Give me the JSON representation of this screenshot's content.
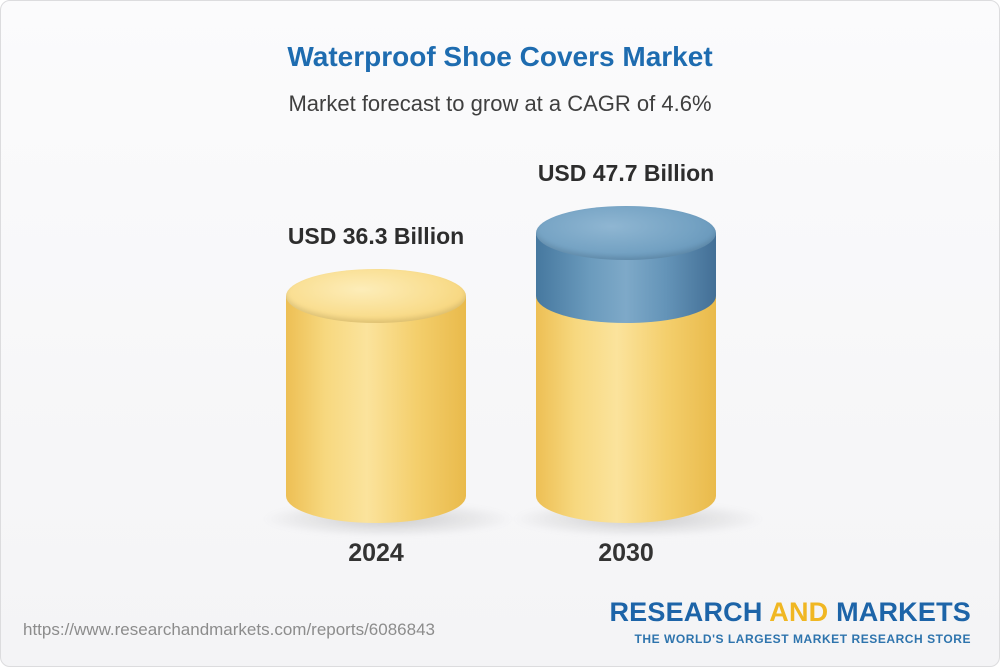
{
  "page": {
    "title": "Waterproof Shoe Covers Market",
    "subtitle": "Market forecast to grow at a CAGR of 4.6%"
  },
  "chart_data": {
    "type": "bar",
    "variant": "3d-cylinder",
    "title": "Waterproof Shoe Covers Market",
    "subtitle": "Market forecast to grow at a CAGR of 4.6%",
    "unit": "USD Billion",
    "cagr_percent": 4.6,
    "categories": [
      "2024",
      "2030"
    ],
    "values": [
      36.3,
      47.7
    ],
    "value_labels": [
      "USD 36.3 Billion",
      "USD 47.7 Billion"
    ],
    "bars": [
      {
        "category": "2024",
        "value": 36.3,
        "value_label": "USD 36.3 Billion",
        "segments": [
          {
            "value": 36.3,
            "color": "gold"
          }
        ]
      },
      {
        "category": "2030",
        "value": 47.7,
        "value_label": "USD 47.7 Billion",
        "segments": [
          {
            "value": 36.3,
            "color": "gold"
          },
          {
            "value": 11.4,
            "color": "blue"
          }
        ]
      }
    ],
    "colors": {
      "gold": "#f5cf6e",
      "blue": "#5e90b6",
      "title_blue": "#1e6cb0"
    },
    "xlabel": "",
    "ylabel": "",
    "ylim": [
      0,
      50
    ],
    "grid": false,
    "legend": false
  },
  "footer": {
    "url": "https://www.researchandmarkets.com/reports/6086843",
    "logo": {
      "research": "RESEARCH",
      "and": "AND",
      "markets": "MARKETS",
      "tagline": "THE WORLD'S LARGEST MARKET RESEARCH STORE"
    },
    "logo_colors": {
      "blue": "#1d64a8",
      "gold": "#f0b723"
    }
  }
}
